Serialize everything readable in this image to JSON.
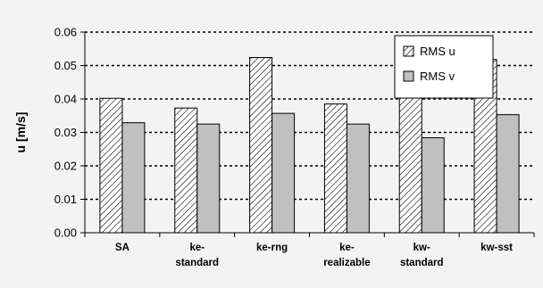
{
  "chart_data": {
    "type": "bar",
    "ylabel": "u [m/s]",
    "xlabel": "",
    "ylim": [
      0,
      0.06
    ],
    "yticks": [
      "0.00",
      "0.01",
      "0.02",
      "0.03",
      "0.04",
      "0.05",
      "0.06"
    ],
    "categories": [
      [
        "SA"
      ],
      [
        "ke-",
        "standard"
      ],
      [
        "ke-rng"
      ],
      [
        "ke-",
        "realizable"
      ],
      [
        "kw-",
        "standard"
      ],
      [
        "kw-sst"
      ]
    ],
    "series": [
      {
        "name": "RMS u",
        "values": [
          0.0402,
          0.0373,
          0.0524,
          0.0385,
          0.0413,
          0.0518
        ],
        "fill": "hatch",
        "color": "#ffffff"
      },
      {
        "name": "RMS v",
        "values": [
          0.0329,
          0.0325,
          0.0357,
          0.0325,
          0.0284,
          0.0353
        ],
        "fill": "solid",
        "color": "#c0c0c0"
      }
    ],
    "grid": "horizontal-dotted",
    "legend_position": "top-right",
    "background": "#f3f3f3"
  }
}
